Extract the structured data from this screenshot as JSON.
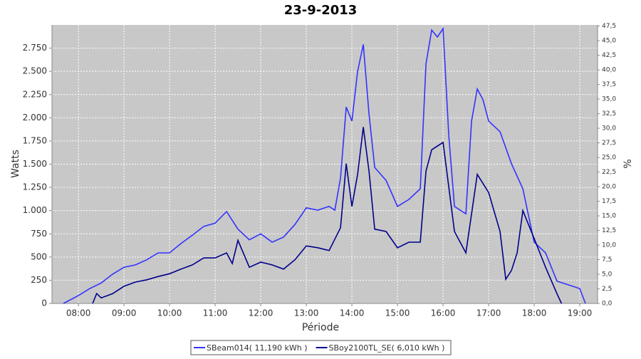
{
  "chart_data": {
    "type": "line",
    "title": "23-9-2013",
    "x_label": "Période",
    "y_label": "Watts",
    "y2_label": "%",
    "xlim": [
      7.42,
      19.39
    ],
    "xticks": [
      {
        "value": 8,
        "label": "08:00"
      },
      {
        "value": 9,
        "label": "09:00"
      },
      {
        "value": 10,
        "label": "10:00"
      },
      {
        "value": 11,
        "label": "11:00"
      },
      {
        "value": 12,
        "label": "12:00"
      },
      {
        "value": 13,
        "label": "13:00"
      },
      {
        "value": 14,
        "label": "14:00"
      },
      {
        "value": 15,
        "label": "15:00"
      },
      {
        "value": 16,
        "label": "16:00"
      },
      {
        "value": 17,
        "label": "17:00"
      },
      {
        "value": 18,
        "label": "18:00"
      },
      {
        "value": 19,
        "label": "19:00"
      }
    ],
    "ylim": [
      0,
      3000
    ],
    "yticks": [
      0,
      250,
      500,
      750,
      {
        "value": 1000,
        "label": "1.000"
      },
      {
        "value": 1250,
        "label": "1.250"
      },
      {
        "value": 1500,
        "label": "1.500"
      },
      {
        "value": 1750,
        "label": "1.750"
      },
      {
        "value": 2000,
        "label": "2.000"
      },
      {
        "value": 2250,
        "label": "2.250"
      },
      {
        "value": 2500,
        "label": "2.500"
      },
      {
        "value": 2750,
        "label": "2.750"
      }
    ],
    "y2lim": [
      0,
      47.7
    ],
    "y2ticks": [
      {
        "value": 0,
        "label": "0,0"
      },
      {
        "value": 2.5,
        "label": "2,5"
      },
      {
        "value": 5,
        "label": "5,0"
      },
      {
        "value": 7.5,
        "label": "7,5"
      },
      {
        "value": 10,
        "label": "10,0"
      },
      {
        "value": 12.5,
        "label": "12,5"
      },
      {
        "value": 15,
        "label": "15,0"
      },
      {
        "value": 17.5,
        "label": "17,5"
      },
      {
        "value": 20,
        "label": "20,0"
      },
      {
        "value": 22.5,
        "label": "22,5"
      },
      {
        "value": 25,
        "label": "25,0"
      },
      {
        "value": 27.5,
        "label": "27,5"
      },
      {
        "value": 30,
        "label": "30,0"
      },
      {
        "value": 32.5,
        "label": "32,5"
      },
      {
        "value": 35,
        "label": "35,0"
      },
      {
        "value": 37.5,
        "label": "37,5"
      },
      {
        "value": 40,
        "label": "40,0"
      },
      {
        "value": 42.5,
        "label": "42,5"
      },
      {
        "value": 45,
        "label": "45,0"
      },
      {
        "value": 47.5,
        "label": "47,5"
      }
    ],
    "grid": true,
    "legend_position": "bottom",
    "series": [
      {
        "name": "SBeam014( 11,190 kWh )",
        "color": "#3333ff",
        "x": [
          7.67,
          8.0,
          8.25,
          8.5,
          8.75,
          9.0,
          9.25,
          9.5,
          9.75,
          10.0,
          10.25,
          10.5,
          10.75,
          11.0,
          11.25,
          11.5,
          11.75,
          12.0,
          12.25,
          12.5,
          12.75,
          13.0,
          13.25,
          13.5,
          13.625,
          13.75,
          13.875,
          14.0,
          14.125,
          14.25,
          14.375,
          14.5,
          14.75,
          15.0,
          15.25,
          15.5,
          15.625,
          15.75,
          15.875,
          16.0,
          16.125,
          16.25,
          16.5,
          16.625,
          16.75,
          16.875,
          17.0,
          17.25,
          17.5,
          17.75,
          18.0,
          18.25,
          18.5,
          18.75,
          19.0,
          19.125
        ],
        "values": [
          0,
          85,
          160,
          220,
          315,
          390,
          415,
          470,
          545,
          545,
          645,
          735,
          830,
          865,
          990,
          800,
          685,
          750,
          660,
          715,
          850,
          1030,
          1005,
          1045,
          1005,
          1350,
          2115,
          1965,
          2500,
          2790,
          2040,
          1465,
          1325,
          1045,
          1120,
          1235,
          2580,
          2945,
          2870,
          2960,
          1810,
          1045,
          965,
          1965,
          2310,
          2195,
          1965,
          1850,
          1505,
          1235,
          660,
          545,
          240,
          200,
          160,
          0
        ]
      },
      {
        "name": "SBoy2100TL_SE( 6,010 kWh )",
        "color": "#00008b",
        "x": [
          8.31,
          8.4,
          8.5,
          8.75,
          9.0,
          9.25,
          9.5,
          9.75,
          10.0,
          10.25,
          10.5,
          10.75,
          11.0,
          11.25,
          11.375,
          11.5,
          11.75,
          12.0,
          12.25,
          12.5,
          12.75,
          13.0,
          13.25,
          13.5,
          13.75,
          13.875,
          14.0,
          14.125,
          14.25,
          14.375,
          14.5,
          14.75,
          15.0,
          15.25,
          15.5,
          15.625,
          15.75,
          16.0,
          16.25,
          16.5,
          16.625,
          16.75,
          17.0,
          17.25,
          17.375,
          17.5,
          17.625,
          17.75,
          18.0,
          18.25,
          18.5,
          18.6
        ],
        "values": [
          0,
          107,
          60,
          105,
          185,
          230,
          255,
          290,
          320,
          370,
          415,
          490,
          490,
          545,
          430,
          680,
          390,
          445,
          415,
          370,
          470,
          620,
          600,
          570,
          815,
          1505,
          1045,
          1390,
          1900,
          1425,
          800,
          775,
          600,
          660,
          660,
          1425,
          1655,
          1735,
          775,
          545,
          965,
          1390,
          1195,
          775,
          260,
          355,
          545,
          1000,
          700,
          390,
          105,
          0
        ]
      }
    ]
  }
}
